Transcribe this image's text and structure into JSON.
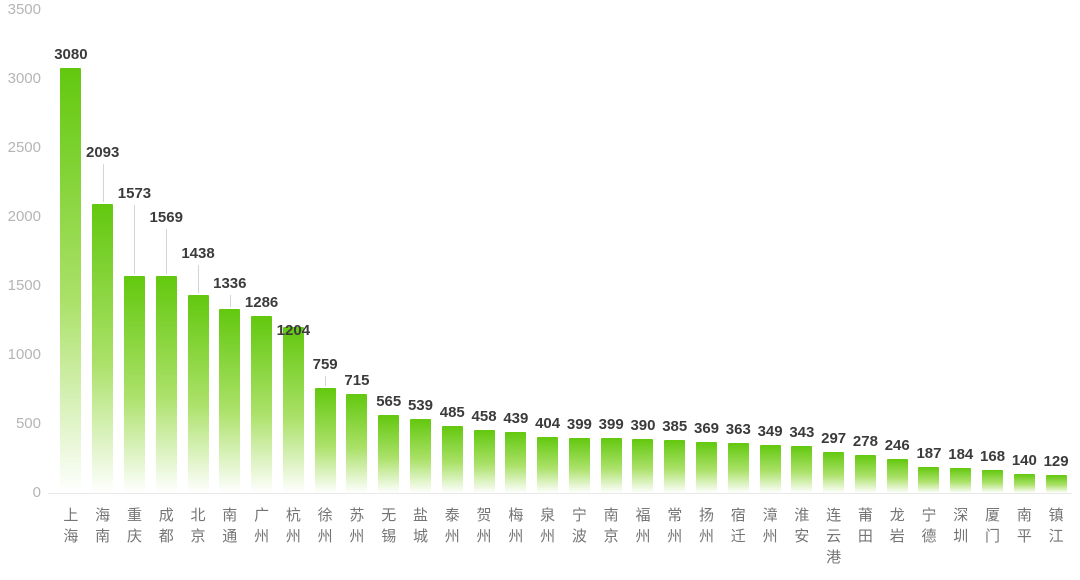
{
  "chart_data": {
    "type": "bar",
    "title": "",
    "xlabel": "",
    "ylabel": "",
    "categories": [
      "上海",
      "海南",
      "重庆",
      "成都",
      "北京",
      "南通",
      "广州",
      "杭州",
      "徐州",
      "苏州",
      "无锡",
      "盐城",
      "泰州",
      "贺州",
      "梅州",
      "泉州",
      "宁波",
      "南京",
      "福州",
      "常州",
      "扬州",
      "宿迁",
      "漳州",
      "淮安",
      "连云港",
      "莆田",
      "龙岩",
      "宁德",
      "深圳",
      "厦门",
      "南平",
      "镇江"
    ],
    "values": [
      3080,
      2093,
      1573,
      1569,
      1438,
      1336,
      1286,
      1204,
      759,
      715,
      565,
      539,
      485,
      458,
      439,
      404,
      399,
      399,
      390,
      385,
      369,
      363,
      349,
      343,
      297,
      278,
      246,
      187,
      184,
      168,
      140,
      129
    ],
    "ylim": [
      0,
      3500
    ],
    "y_ticks": [
      "0",
      "500",
      "1000",
      "1500",
      "2000",
      "2500",
      "3000",
      "3500"
    ],
    "grid": false,
    "legend_position": "none",
    "bar_gradient": {
      "top": "#62c80e",
      "mid": "#abe169",
      "bottom": "#ffffff"
    },
    "colors": {
      "background": "#ffffff",
      "value_label": "#3b3b3b",
      "y_tick_label": "#b5b5b5",
      "category_label": "#757575",
      "leader_line": "#d4d4d4",
      "axis_line": "#e8e8e8"
    },
    "label_dy": [
      0,
      38,
      69,
      45,
      28,
      12,
      0,
      -17,
      10,
      0,
      0,
      0,
      0,
      0,
      0,
      0,
      0,
      0,
      0,
      0,
      0,
      0,
      0,
      0,
      0,
      0,
      0,
      0,
      0,
      0,
      0,
      0
    ]
  }
}
